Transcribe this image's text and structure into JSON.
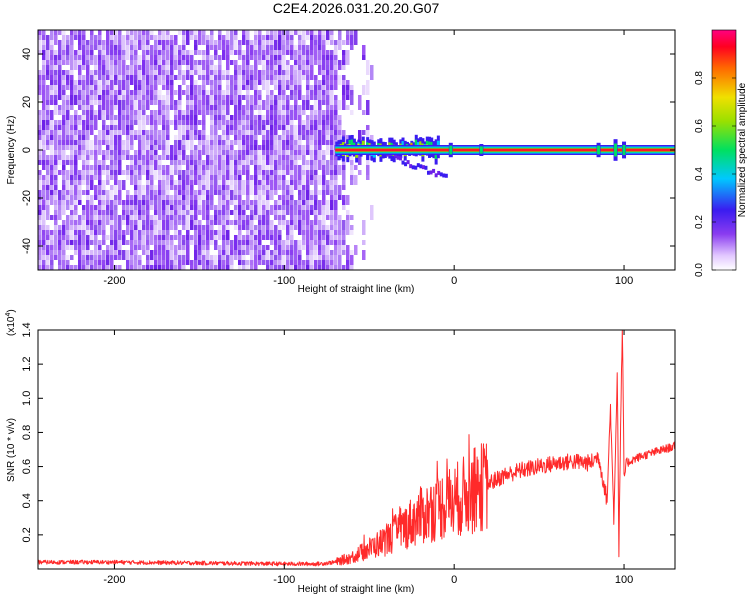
{
  "title": "C2E4.2026.031.20.20.G07",
  "chart_data": [
    {
      "type": "heatmap",
      "xlabel": "Height of straight line (km)",
      "ylabel": "Frequency (Hz)",
      "xlim": [
        -245,
        130
      ],
      "ylim": [
        -50,
        50
      ],
      "x_ticks": [
        -200,
        -100,
        0,
        100
      ],
      "y_ticks": [
        -40,
        -20,
        0,
        20,
        40
      ],
      "colorbar": {
        "label": "Normalized spectral amplitude",
        "range": [
          0,
          1
        ],
        "ticks": [
          "0.0",
          "0.2",
          "0.4",
          "0.6",
          "0.8"
        ],
        "colormap": [
          "#ffffff",
          "#d9b8ff",
          "#8a3cf0",
          "#3a1cf0",
          "#00d8ff",
          "#00e060",
          "#f0e000",
          "#ff7a00",
          "#ff0000",
          "#ff0080"
        ]
      },
      "features": {
        "noise_region_x": [
          -245,
          -60
        ],
        "carrier_line": {
          "x_start": -70,
          "x_end": 130,
          "frequency": 0
        },
        "spread_region_x": [
          -70,
          -10
        ]
      }
    },
    {
      "type": "line",
      "xlabel": "Height of straight line (km)",
      "ylabel": "SNR (10 * v/v)",
      "multiplier": "(x10",
      "multiplier_exp": "4",
      "xlim": [
        -245,
        130
      ],
      "ylim": [
        0,
        1.4
      ],
      "x_ticks": [
        -200,
        -100,
        0,
        100
      ],
      "y_ticks": [
        "0.2",
        "0.4",
        "0.6",
        "0.8",
        "1.0",
        "1.2",
        "1.4"
      ],
      "color": "#ff2a2a",
      "series": [
        {
          "x": [
            -245,
            -200,
            -150,
            -100,
            -80,
            -70,
            -60,
            -50,
            -40,
            -30,
            -20,
            -10,
            0,
            10,
            20,
            30,
            40,
            50,
            60,
            70,
            80,
            85,
            90,
            92,
            94,
            96,
            97,
            98,
            99,
            100,
            102,
            105,
            110,
            120,
            130
          ],
          "values": [
            0.04,
            0.04,
            0.035,
            0.03,
            0.03,
            0.04,
            0.07,
            0.12,
            0.17,
            0.24,
            0.31,
            0.36,
            0.4,
            0.45,
            0.5,
            0.55,
            0.58,
            0.6,
            0.62,
            0.63,
            0.62,
            0.66,
            0.4,
            0.95,
            0.3,
            1.15,
            0.12,
            0.85,
            1.4,
            0.55,
            0.62,
            0.64,
            0.66,
            0.69,
            0.72
          ]
        }
      ]
    }
  ]
}
